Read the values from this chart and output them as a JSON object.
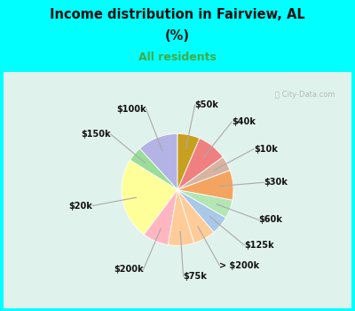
{
  "title_line1": "Income distribution in Fairview, AL",
  "title_line2": "(%)",
  "subtitle": "All residents",
  "title_color": "#111111",
  "subtitle_color": "#44aa44",
  "bg_cyan": "#00ffff",
  "bg_chart": "#e0f2ec",
  "watermark": "City-Data.com",
  "labels": [
    "$100k",
    "$150k",
    "$20k",
    "$200k",
    "$75k",
    "> $200k",
    "$125k",
    "$60k",
    "$30k",
    "$10k",
    "$40k",
    "$50k"
  ],
  "values": [
    11,
    4,
    22,
    7,
    7,
    6,
    5,
    5,
    8,
    4,
    8,
    6
  ],
  "colors": [
    "#b3b3e6",
    "#99dd99",
    "#ffff99",
    "#ffb6c1",
    "#ffcc99",
    "#ffcc99",
    "#aac8e8",
    "#b3e6b3",
    "#f4a460",
    "#d8b4a0",
    "#f08080",
    "#c8a020"
  ],
  "label_fontsize": 7,
  "startangle": 90
}
